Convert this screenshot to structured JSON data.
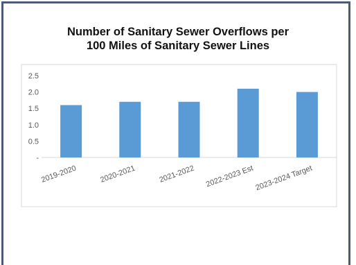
{
  "chart_data": {
    "type": "bar",
    "title_lines": [
      "Number of Sanitary Sewer Overflows per",
      "100 Miles of Sanitary Sewer Lines"
    ],
    "categories": [
      "2019-2020",
      "2020-2021",
      "2021-2022",
      "2022-2023 Est",
      "2023-2024 Target"
    ],
    "values": [
      1.6,
      1.7,
      1.7,
      2.1,
      2.0
    ],
    "ylim": [
      0,
      2.5
    ],
    "yticks": [
      "-",
      "0.5",
      "1.0",
      "1.5",
      "2.0",
      "2.5"
    ],
    "ytick_values": [
      0,
      0.5,
      1.0,
      1.5,
      2.0,
      2.5
    ],
    "grid": false,
    "legend": "none",
    "bar_color": "#5b9bd5",
    "xlabel": "",
    "ylabel": ""
  },
  "frame_color": "#4a5a78"
}
